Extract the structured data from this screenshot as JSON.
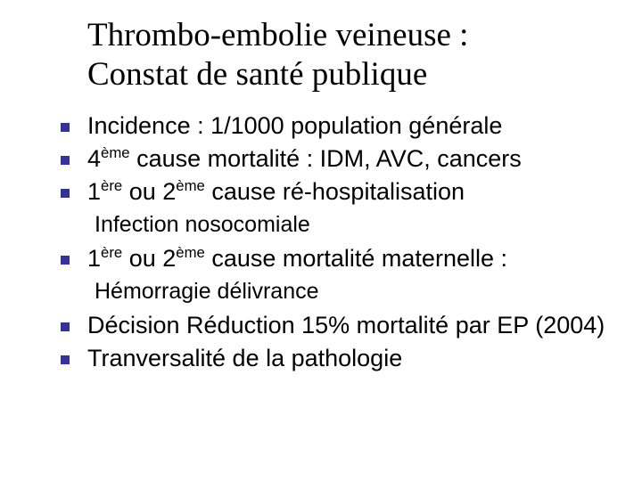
{
  "title_line1": "Thrombo-embolie veineuse :",
  "title_line2": "Constat de santé publique",
  "colors": {
    "bullet_marker": "#333399",
    "text": "#000000",
    "background": "#ffffff"
  },
  "typography": {
    "title_font_family": "Times New Roman",
    "title_fontsize_pt": 28,
    "body_font_family": "Verdana",
    "body_fontsize_pt": 20,
    "sub_fontsize_pt": 19
  },
  "bullets": [
    {
      "text": "Incidence : 1/1000 population générale"
    },
    {
      "html": "4<sup class='ord'>ème</sup> cause mortalité : IDM, AVC, cancers"
    },
    {
      "html": "1<sup class='ord'>ère</sup> ou 2<sup class='ord'>ème</sup> cause ré-hospitalisation"
    }
  ],
  "sub1": "Infection nosocomiale",
  "bullet4": {
    "html": "1<sup class='ord'>ère</sup> ou 2<sup class='ord'>ème</sup> cause mortalité maternelle :"
  },
  "sub2": "Hémorragie délivrance",
  "bullet5": {
    "text": "Décision Réduction 15% mortalité par EP (2004)"
  },
  "bullet6": {
    "text": "Tranversalité de la pathologie"
  }
}
